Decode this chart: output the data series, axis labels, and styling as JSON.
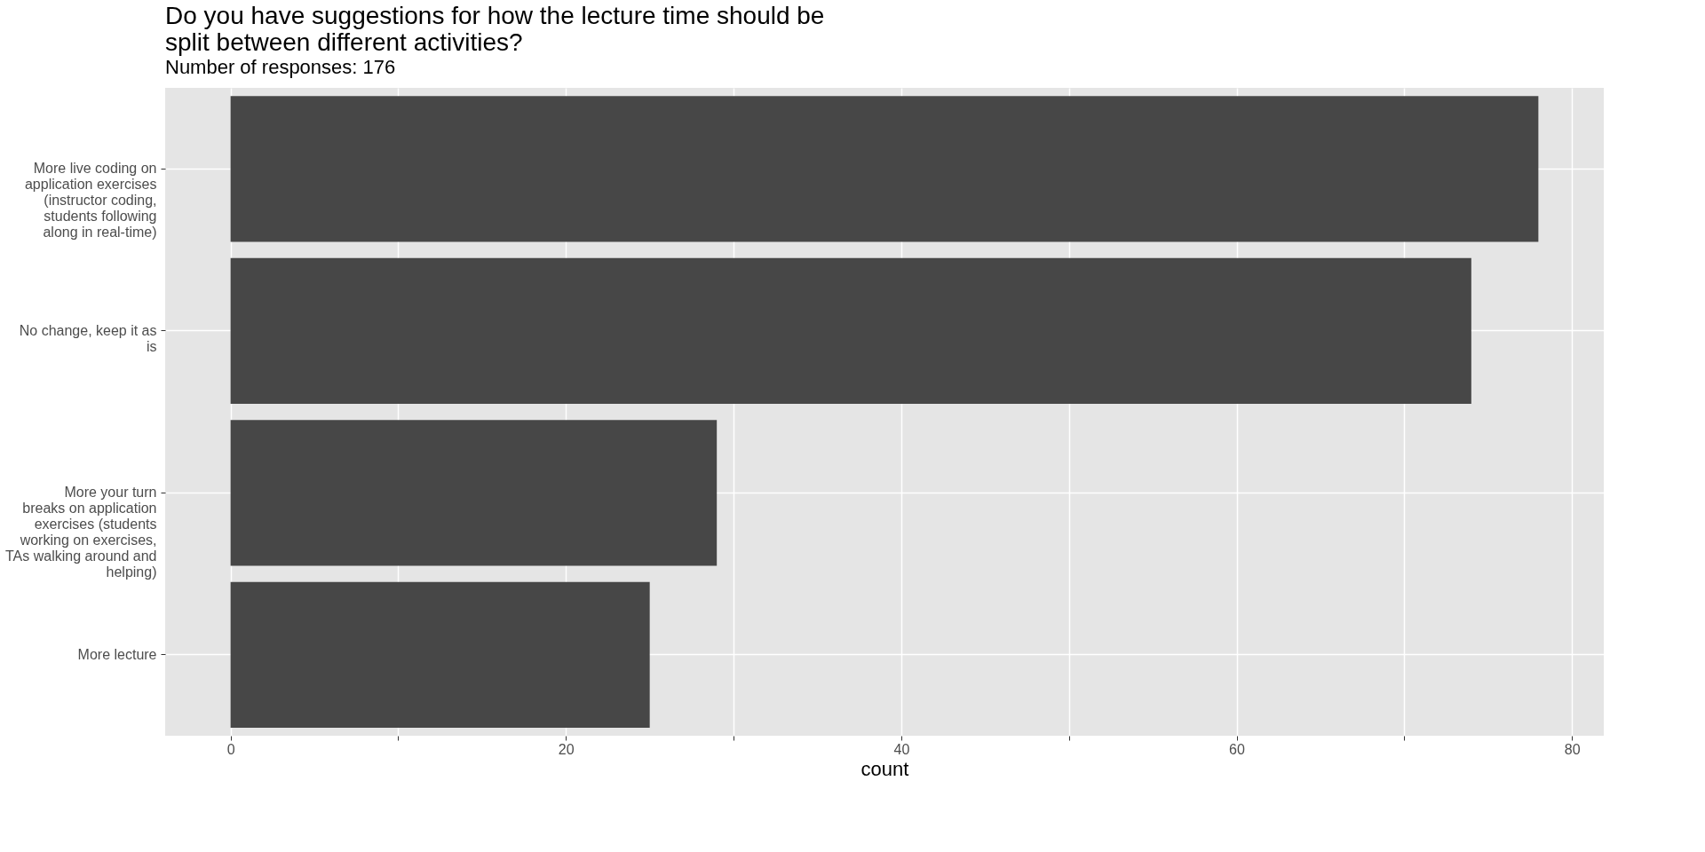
{
  "chart_data": {
    "type": "bar",
    "orientation": "horizontal",
    "title": "Do you have suggestions for how the lecture time should be\nsplit between different activities?",
    "subtitle": "Number of responses: 176",
    "xlabel": "count",
    "categories": [
      "More live coding on\napplication exercises\n(instructor coding,\nstudents following\nalong in real-time)",
      "No change, keep it as\nis",
      "More your turn\nbreaks on application\nexercises (students\nworking on exercises,\nTAs walking around and\nhelping)",
      "More lecture"
    ],
    "values": [
      78,
      74,
      29,
      25
    ],
    "color": "#474747",
    "xlim": [
      -3.9,
      81.9
    ],
    "xticks": [
      0,
      {
        "value": 10,
        "label": null
      },
      20,
      {
        "value": 30,
        "label": null
      },
      40,
      {
        "value": 50,
        "label": null
      },
      60,
      {
        "value": 70,
        "label": null
      },
      80
    ],
    "grid": true
  }
}
